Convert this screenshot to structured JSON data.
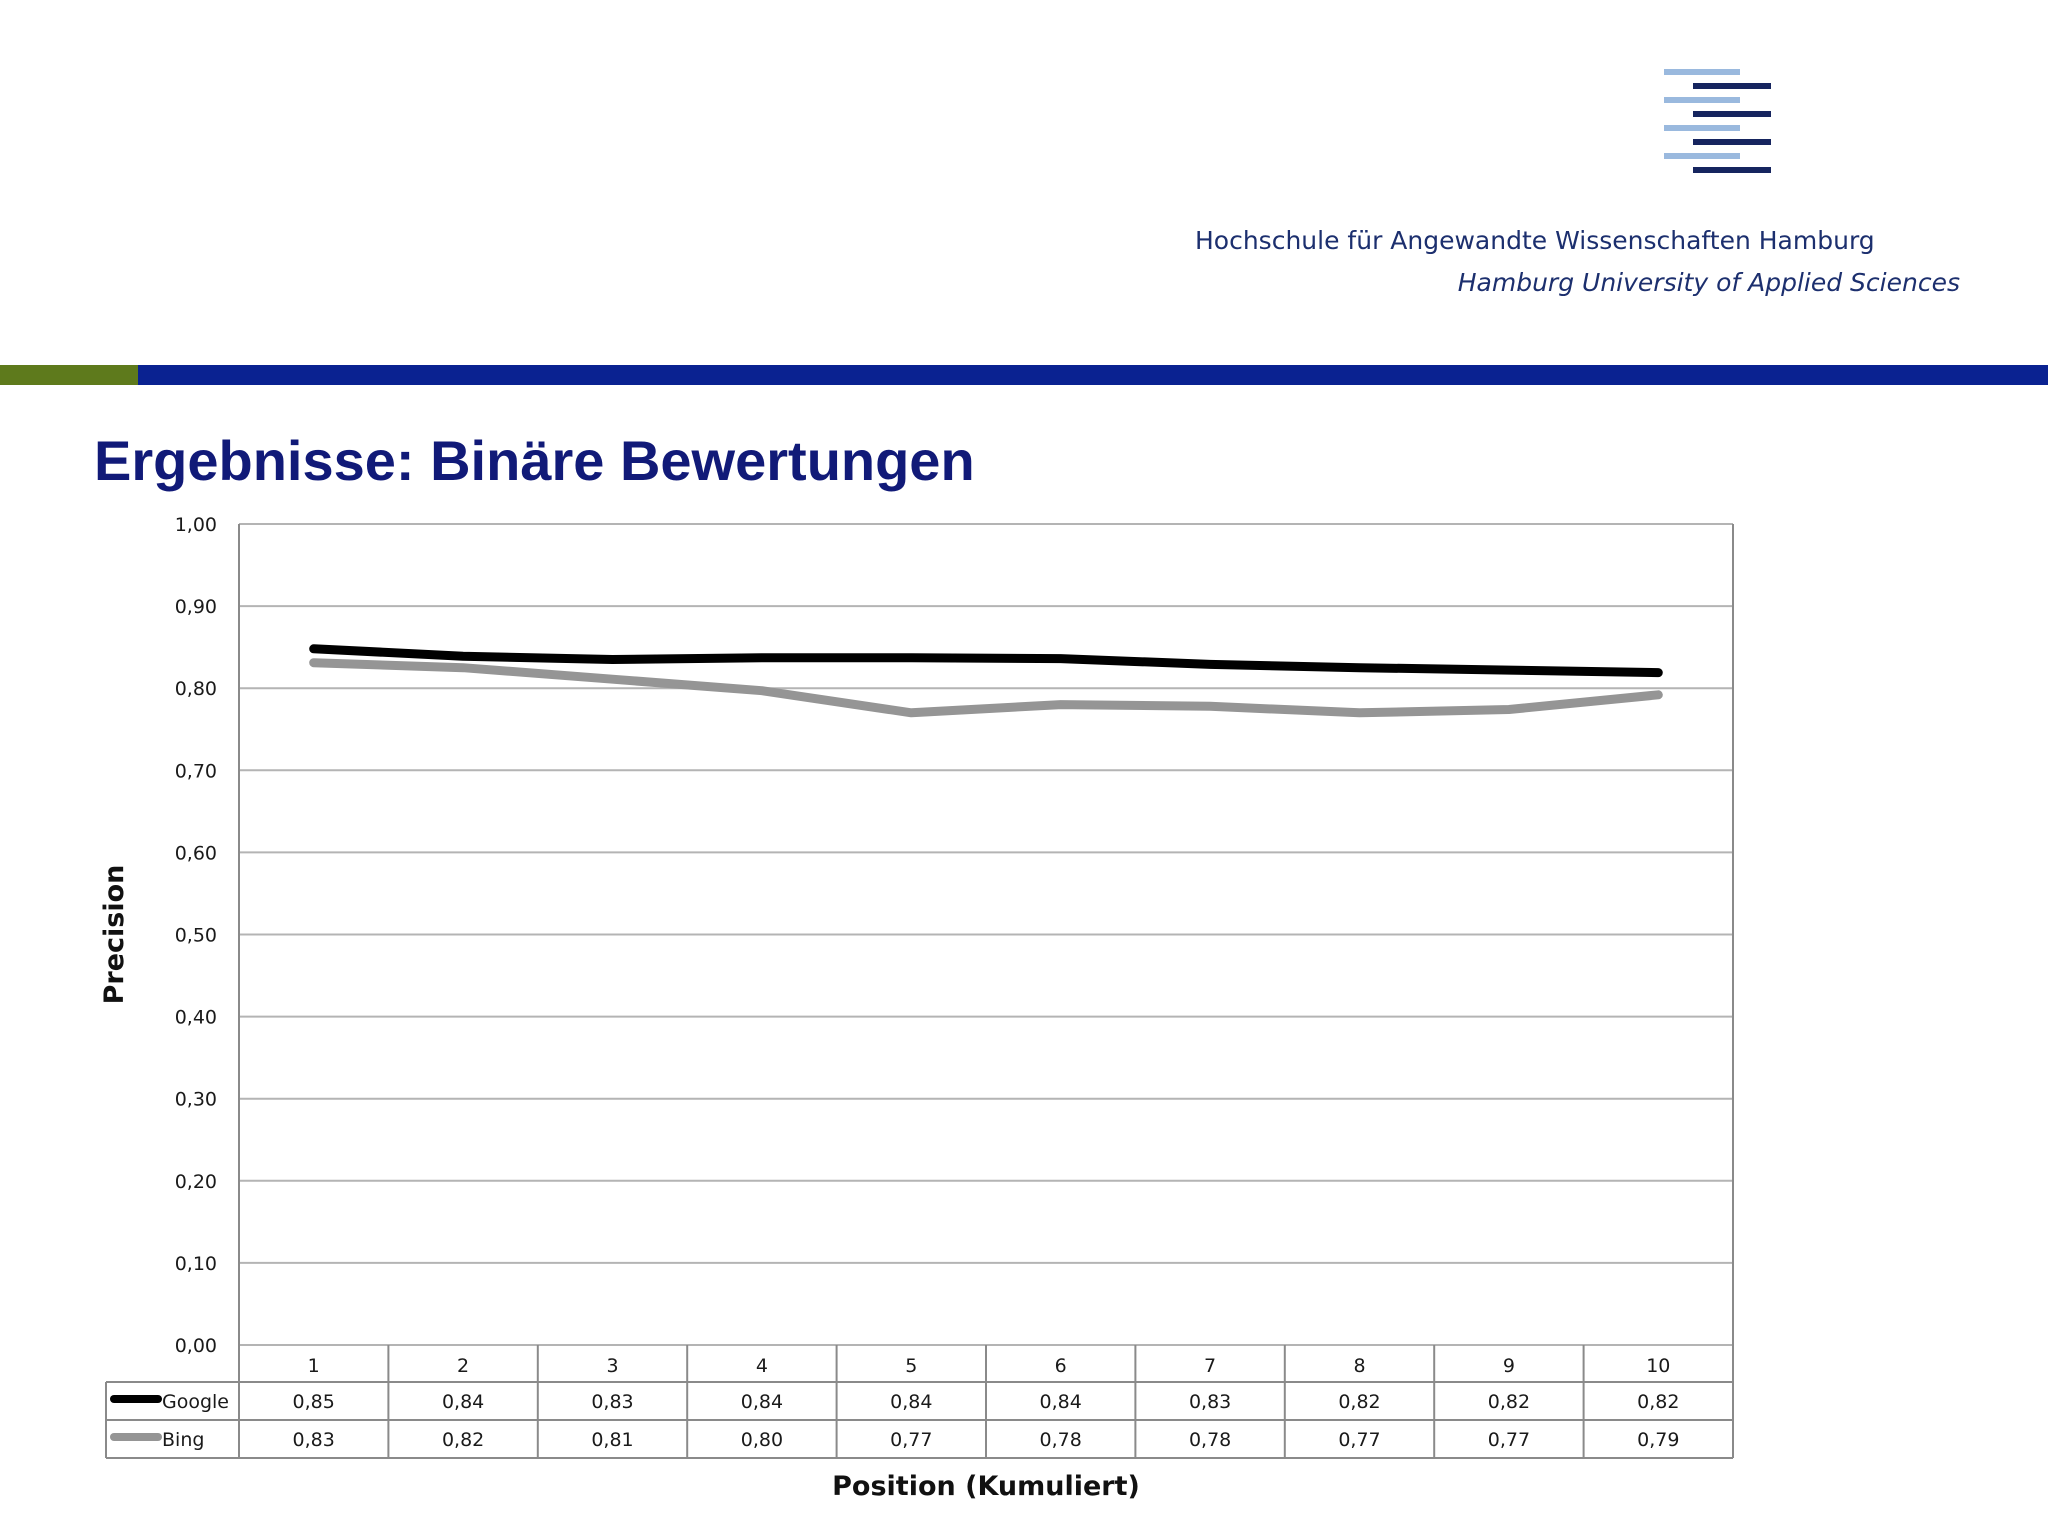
{
  "header": {
    "university_de": "Hochschule für Angewandte Wissenschaften Hamburg",
    "university_en": "Hamburg University of Applied Sciences",
    "logo_icon": "haw-hamburg-logo-icon",
    "colors": {
      "navy": "#1c2f6e",
      "light_blue": "#9ab9de",
      "band_green": "#5e7a1c",
      "band_blue": "#0a2291"
    }
  },
  "slide": {
    "title": "Ergebnisse: Binäre Bewertungen"
  },
  "chart_data": {
    "type": "line",
    "title": "",
    "xlabel": "Position (Kumuliert)",
    "ylabel": "Precision",
    "ylim": [
      0,
      1
    ],
    "yticks": [
      "0,00",
      "0,10",
      "0,20",
      "0,30",
      "0,40",
      "0,50",
      "0,60",
      "0,70",
      "0,80",
      "0,90",
      "1,00"
    ],
    "categories": [
      "1",
      "2",
      "3",
      "4",
      "5",
      "6",
      "7",
      "8",
      "9",
      "10"
    ],
    "grid": true,
    "legend": "data-table-below",
    "series": [
      {
        "name": "Google",
        "color": "#000000",
        "values": [
          0.848,
          0.839,
          0.835,
          0.837,
          0.837,
          0.836,
          0.829,
          0.825,
          0.822,
          0.819
        ],
        "labels": [
          "0,85",
          "0,84",
          "0,83",
          "0,84",
          "0,84",
          "0,84",
          "0,83",
          "0,82",
          "0,82",
          "0,82"
        ]
      },
      {
        "name": "Bing",
        "color": "#959595",
        "values": [
          0.831,
          0.825,
          0.811,
          0.797,
          0.77,
          0.78,
          0.778,
          0.77,
          0.774,
          0.792
        ],
        "labels": [
          "0,83",
          "0,82",
          "0,81",
          "0,80",
          "0,77",
          "0,78",
          "0,78",
          "0,77",
          "0,77",
          "0,79"
        ]
      }
    ]
  }
}
